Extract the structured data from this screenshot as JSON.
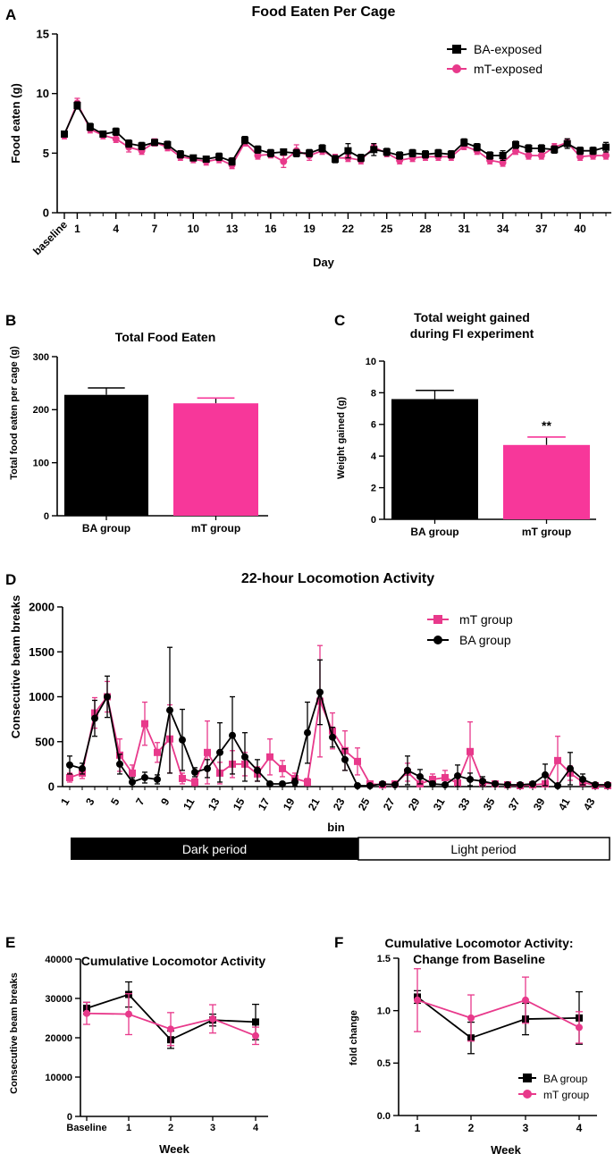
{
  "colors": {
    "ba": "#000000",
    "mt": "#E8398B",
    "mt_bar": "#F7379A"
  },
  "chart_data": [
    {
      "id": "A",
      "panel_label": "A",
      "type": "line",
      "title": "Food Eaten Per Cage",
      "xlabel": "Day",
      "ylabel": "Food eaten (g)",
      "ylim": [
        0,
        15
      ],
      "yticks": [
        "0",
        "5",
        "10",
        "15"
      ],
      "xticks": [
        "baseline",
        "1",
        "4",
        "7",
        "10",
        "13",
        "16",
        "19",
        "22",
        "25",
        "28",
        "31",
        "34",
        "37",
        "40"
      ],
      "xtick_index": [
        0,
        1,
        4,
        7,
        10,
        13,
        16,
        19,
        22,
        25,
        28,
        31,
        34,
        37,
        40
      ],
      "n_points": 43,
      "series": [
        {
          "name": "BA-exposed",
          "color": "#000000",
          "marker": "square",
          "values": [
            6.6,
            9.0,
            7.2,
            6.6,
            6.8,
            5.8,
            5.6,
            5.9,
            5.7,
            4.9,
            4.6,
            4.5,
            4.7,
            4.3,
            6.1,
            5.3,
            5.0,
            5.1,
            5.0,
            5.0,
            5.4,
            4.5,
            5.2,
            4.6,
            5.3,
            5.1,
            4.8,
            5.0,
            4.9,
            5.0,
            4.9,
            5.9,
            5.5,
            4.8,
            4.8,
            5.7,
            5.4,
            5.4,
            5.3,
            5.8,
            5.2,
            5.2,
            5.5
          ],
          "errors": [
            0.2,
            0.3,
            0.3,
            0.2,
            0.3,
            0.3,
            0.3,
            0.2,
            0.3,
            0.3,
            0.2,
            0.2,
            0.3,
            0.3,
            0.3,
            0.3,
            0.3,
            0.2,
            0.3,
            0.3,
            0.3,
            0.3,
            0.6,
            0.3,
            0.5,
            0.3,
            0.3,
            0.3,
            0.3,
            0.3,
            0.3,
            0.3,
            0.3,
            0.3,
            0.4,
            0.3,
            0.3,
            0.3,
            0.3,
            0.4,
            0.3,
            0.3,
            0.4
          ]
        },
        {
          "name": "mT-exposed",
          "color": "#E8398B",
          "marker": "circle",
          "values": [
            6.5,
            9.2,
            7.0,
            6.5,
            6.2,
            5.5,
            5.2,
            5.9,
            5.5,
            4.7,
            4.5,
            4.3,
            4.5,
            4.0,
            5.9,
            4.8,
            4.9,
            4.3,
            5.2,
            4.8,
            5.2,
            4.6,
            4.6,
            4.4,
            5.5,
            5.0,
            4.4,
            4.6,
            4.7,
            4.7,
            4.7,
            5.6,
            5.2,
            4.4,
            4.2,
            5.2,
            4.8,
            4.8,
            5.5,
            5.9,
            4.7,
            4.8,
            4.8
          ],
          "errors": [
            0.3,
            0.4,
            0.3,
            0.3,
            0.3,
            0.4,
            0.3,
            0.3,
            0.3,
            0.3,
            0.3,
            0.3,
            0.3,
            0.3,
            0.3,
            0.3,
            0.3,
            0.5,
            0.5,
            0.4,
            0.3,
            0.3,
            0.3,
            0.3,
            0.3,
            0.3,
            0.3,
            0.3,
            0.3,
            0.3,
            0.3,
            0.3,
            0.3,
            0.3,
            0.3,
            0.3,
            0.3,
            0.3,
            0.3,
            0.3,
            0.3,
            0.3,
            0.3
          ]
        }
      ]
    },
    {
      "id": "B",
      "panel_label": "B",
      "type": "bar",
      "title": "Total Food Eaten",
      "xlabel": "",
      "ylabel": "Total food eaten per cage (g)",
      "ylim": [
        0,
        300
      ],
      "yticks": [
        "0",
        "100",
        "200",
        "300"
      ],
      "categories": [
        "BA group",
        "mT group"
      ],
      "values": [
        228,
        212
      ],
      "errors": [
        13,
        10
      ],
      "bar_colors": [
        "#000000",
        "#F7379A"
      ],
      "annotations": [
        "",
        ""
      ]
    },
    {
      "id": "C",
      "panel_label": "C",
      "type": "bar",
      "title": "Total weight gained",
      "title_line2": "during FI experiment",
      "xlabel": "",
      "ylabel": "Weight gained (g)",
      "ylim": [
        0,
        10
      ],
      "yticks": [
        "0",
        "2",
        "4",
        "6",
        "8",
        "10"
      ],
      "categories": [
        "BA group",
        "mT group"
      ],
      "values": [
        7.6,
        4.7
      ],
      "errors": [
        0.55,
        0.5
      ],
      "bar_colors": [
        "#000000",
        "#F7379A"
      ],
      "annotations": [
        "",
        "**"
      ]
    },
    {
      "id": "D",
      "panel_label": "D",
      "type": "line",
      "title": "22-hour Locomotion Activity",
      "xlabel": "bin",
      "ylabel": "Consecutive beam breaks",
      "ylim": [
        0,
        2000
      ],
      "yticks": [
        "0",
        "500",
        "1000",
        "1500",
        "2000"
      ],
      "xticks": [
        "1",
        "3",
        "5",
        "7",
        "9",
        "11",
        "13",
        "15",
        "17",
        "19",
        "21",
        "23",
        "25",
        "27",
        "29",
        "31",
        "33",
        "35",
        "37",
        "39",
        "41",
        "43"
      ],
      "n_bins": 44,
      "period_bar": {
        "dark": "Dark period",
        "light": "Light period",
        "dark_bins": 24
      },
      "series": [
        {
          "name": "mT group",
          "color": "#E8398B",
          "marker": "square",
          "values": [
            100,
            150,
            820,
            1000,
            350,
            150,
            700,
            380,
            530,
            90,
            50,
            380,
            150,
            250,
            250,
            140,
            330,
            200,
            90,
            50,
            950,
            620,
            400,
            280,
            30,
            20,
            30,
            160,
            30,
            80,
            100,
            40,
            390,
            40,
            30,
            20,
            10,
            20,
            30,
            290,
            150,
            50,
            10,
            10
          ],
          "errors": [
            50,
            60,
            170,
            170,
            180,
            90,
            240,
            110,
            380,
            60,
            40,
            350,
            120,
            150,
            130,
            80,
            200,
            90,
            60,
            40,
            620,
            200,
            220,
            150,
            30,
            15,
            30,
            100,
            30,
            60,
            80,
            30,
            330,
            30,
            20,
            10,
            10,
            20,
            30,
            270,
            80,
            40,
            10,
            10
          ]
        },
        {
          "name": "BA group",
          "color": "#000000",
          "marker": "circle",
          "values": [
            240,
            200,
            760,
            1000,
            250,
            50,
            100,
            80,
            850,
            520,
            160,
            200,
            380,
            570,
            330,
            180,
            30,
            30,
            50,
            600,
            1050,
            550,
            300,
            10,
            10,
            30,
            20,
            180,
            110,
            30,
            20,
            120,
            80,
            60,
            30,
            20,
            20,
            30,
            130,
            10,
            200,
            80,
            20,
            20
          ],
          "errors": [
            100,
            60,
            200,
            230,
            110,
            50,
            60,
            50,
            700,
            340,
            50,
            100,
            330,
            430,
            270,
            120,
            20,
            20,
            40,
            340,
            360,
            110,
            120,
            10,
            10,
            20,
            15,
            160,
            80,
            30,
            20,
            120,
            70,
            50,
            20,
            10,
            10,
            20,
            120,
            10,
            180,
            60,
            10,
            10
          ]
        }
      ]
    },
    {
      "id": "E",
      "panel_label": "E",
      "type": "line",
      "title": "Cumulative Locomotor Activity",
      "xlabel": "Week",
      "ylabel": "Consecutive beam breaks",
      "ylim": [
        0,
        40000
      ],
      "yticks": [
        "0",
        "10000",
        "20000",
        "30000",
        "40000"
      ],
      "categories": [
        "Baseline",
        "1",
        "2",
        "3",
        "4"
      ],
      "series": [
        {
          "name": "BA group",
          "color": "#000000",
          "marker": "square",
          "values": [
            27500,
            31000,
            19500,
            24500,
            24000
          ],
          "errors": [
            1500,
            3200,
            2200,
            1500,
            4500
          ]
        },
        {
          "name": "mT group",
          "color": "#E8398B",
          "marker": "circle",
          "values": [
            26200,
            26000,
            22200,
            24800,
            20500
          ],
          "errors": [
            2800,
            5200,
            4200,
            3600,
            2200
          ]
        }
      ]
    },
    {
      "id": "F",
      "panel_label": "F",
      "type": "line",
      "title": "Cumulative Locomotor Activity:",
      "title_line2": "Change from Baseline",
      "xlabel": "Week",
      "ylabel": "fold change",
      "ylim": [
        0,
        1.5
      ],
      "yticks": [
        "0.0",
        "0.5",
        "1.0",
        "1.5"
      ],
      "categories": [
        "1",
        "2",
        "3",
        "4"
      ],
      "series": [
        {
          "name": "BA group",
          "color": "#000000",
          "marker": "square",
          "values": [
            1.13,
            0.74,
            0.92,
            0.93
          ],
          "errors": [
            0.06,
            0.15,
            0.15,
            0.25
          ]
        },
        {
          "name": "mT group",
          "color": "#E8398B",
          "marker": "circle",
          "values": [
            1.1,
            0.93,
            1.1,
            0.84
          ],
          "errors": [
            0.3,
            0.22,
            0.22,
            0.15
          ]
        }
      ]
    }
  ]
}
